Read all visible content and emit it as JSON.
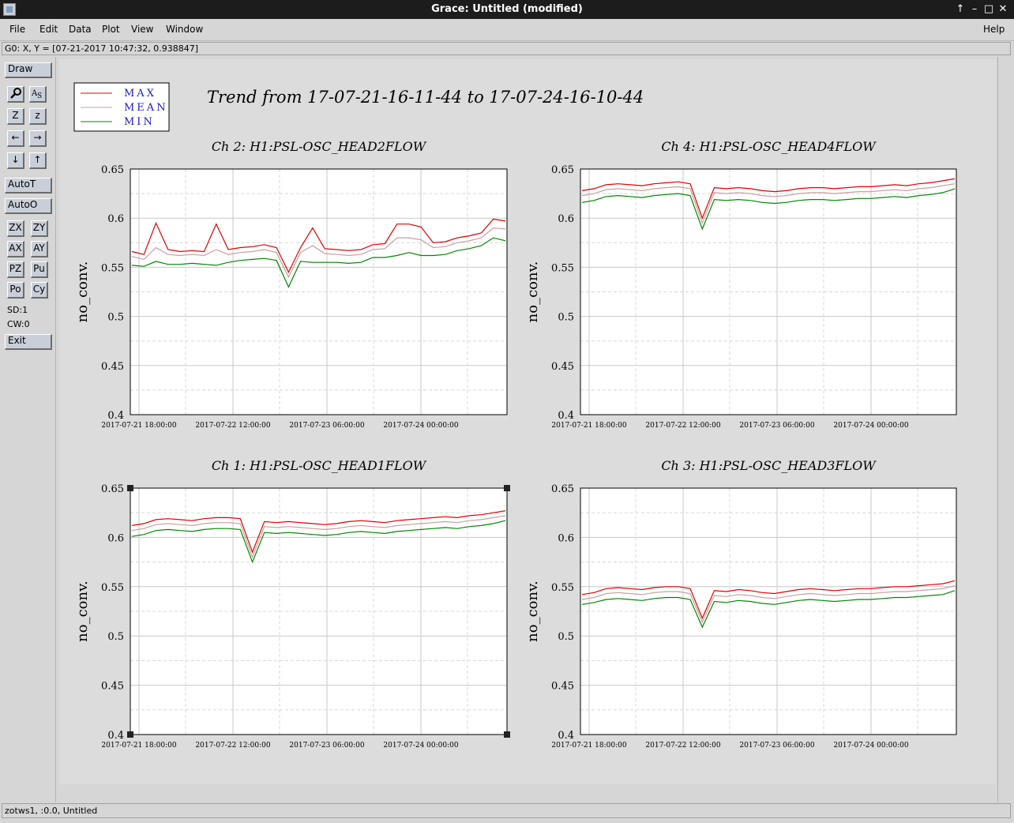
{
  "window": {
    "title": "Grace: Untitled (modified)"
  },
  "menu": {
    "file": "File",
    "edit": "Edit",
    "data": "Data",
    "plot": "Plot",
    "view": "View",
    "window": "Window",
    "help": "Help"
  },
  "locator": "G0: X, Y = [07-21-2017 10:47:32, 0.938847]",
  "toolbar": {
    "draw": "Draw",
    "autoT": "AutoT",
    "autoO": "AutoO",
    "zx": "ZX",
    "zy": "ZY",
    "ax": "AX",
    "ay": "AY",
    "pz": "PZ",
    "pu": "Pu",
    "po": "Po",
    "cy": "Cy",
    "sd": "SD:1",
    "cw": "CW:0",
    "exit": "Exit",
    "icon_zoom": "Z",
    "icon_zoom_small": "z"
  },
  "status": "zotws1, :0.0, Untitled",
  "legend": [
    "MAX",
    "MEAN",
    "MIN"
  ],
  "title": "Trend from 17-07-21-16-11-44 to 17-07-24-16-10-44",
  "colors": {
    "max": "#e00000",
    "mean": "#c8a0a0",
    "min": "#008800",
    "legend_text": "#1a1ad0"
  },
  "chart_data": [
    {
      "type": "line",
      "title": "Ch 2: H1:PSL-OSC_HEAD2FLOW",
      "ylabel": "no_conv.",
      "ylim": [
        0.4,
        0.65
      ],
      "yticks": [
        "0.4",
        "0.45",
        "0.5",
        "0.55",
        "0.6",
        "0.65"
      ],
      "xticks": [
        "2017-07-21 18:00:00",
        "2017-07-22 12:00:00",
        "2017-07-23 06:00:00",
        "2017-07-24 00:00:00"
      ],
      "grid": true,
      "series": [
        {
          "name": "MAX",
          "values": [
            0.566,
            0.563,
            0.595,
            0.568,
            0.566,
            0.567,
            0.566,
            0.594,
            0.568,
            0.57,
            0.571,
            0.573,
            0.57,
            0.545,
            0.57,
            0.59,
            0.569,
            0.568,
            0.567,
            0.568,
            0.573,
            0.574,
            0.594,
            0.594,
            0.591,
            0.575,
            0.576,
            0.58,
            0.582,
            0.585,
            0.599,
            0.597
          ]
        },
        {
          "name": "MEAN",
          "values": [
            0.561,
            0.558,
            0.57,
            0.563,
            0.562,
            0.563,
            0.562,
            0.568,
            0.563,
            0.565,
            0.566,
            0.568,
            0.565,
            0.54,
            0.565,
            0.572,
            0.564,
            0.563,
            0.562,
            0.563,
            0.568,
            0.569,
            0.58,
            0.58,
            0.578,
            0.57,
            0.571,
            0.575,
            0.577,
            0.58,
            0.59,
            0.589
          ]
        },
        {
          "name": "MIN",
          "values": [
            0.552,
            0.551,
            0.556,
            0.553,
            0.553,
            0.554,
            0.553,
            0.552,
            0.555,
            0.557,
            0.558,
            0.559,
            0.557,
            0.53,
            0.556,
            0.555,
            0.555,
            0.555,
            0.554,
            0.555,
            0.56,
            0.56,
            0.562,
            0.565,
            0.562,
            0.562,
            0.563,
            0.567,
            0.569,
            0.572,
            0.58,
            0.577
          ]
        }
      ]
    },
    {
      "type": "line",
      "title": "Ch 4: H1:PSL-OSC_HEAD4FLOW",
      "ylabel": "no_conv.",
      "ylim": [
        0.4,
        0.65
      ],
      "yticks": [
        "0.4",
        "0.45",
        "0.5",
        "0.55",
        "0.6",
        "0.65"
      ],
      "xticks": [
        "2017-07-21 18:00:00",
        "2017-07-22 12:00:00",
        "2017-07-23 06:00:00",
        "2017-07-24 00:00:00"
      ],
      "grid": true,
      "series": [
        {
          "name": "MAX",
          "values": [
            0.628,
            0.63,
            0.634,
            0.635,
            0.634,
            0.633,
            0.635,
            0.636,
            0.637,
            0.635,
            0.6,
            0.631,
            0.63,
            0.631,
            0.63,
            0.628,
            0.627,
            0.628,
            0.63,
            0.631,
            0.631,
            0.63,
            0.631,
            0.632,
            0.632,
            0.633,
            0.634,
            0.633,
            0.635,
            0.636,
            0.638,
            0.64
          ]
        },
        {
          "name": "MEAN",
          "values": [
            0.623,
            0.625,
            0.629,
            0.63,
            0.629,
            0.628,
            0.63,
            0.631,
            0.632,
            0.63,
            0.595,
            0.626,
            0.625,
            0.626,
            0.625,
            0.623,
            0.622,
            0.623,
            0.625,
            0.626,
            0.626,
            0.625,
            0.626,
            0.627,
            0.627,
            0.628,
            0.629,
            0.628,
            0.63,
            0.631,
            0.633,
            0.635
          ]
        },
        {
          "name": "MIN",
          "values": [
            0.616,
            0.618,
            0.622,
            0.623,
            0.622,
            0.621,
            0.623,
            0.624,
            0.625,
            0.623,
            0.589,
            0.619,
            0.618,
            0.619,
            0.618,
            0.616,
            0.615,
            0.616,
            0.618,
            0.619,
            0.619,
            0.618,
            0.619,
            0.62,
            0.62,
            0.621,
            0.622,
            0.621,
            0.623,
            0.624,
            0.626,
            0.63
          ]
        }
      ]
    },
    {
      "type": "line",
      "title": "Ch 1: H1:PSL-OSC_HEAD1FLOW",
      "ylabel": "no_conv.",
      "ylim": [
        0.4,
        0.65
      ],
      "yticks": [
        "0.4",
        "0.45",
        "0.5",
        "0.55",
        "0.6",
        "0.65"
      ],
      "xticks": [
        "2017-07-21 18:00:00",
        "2017-07-22 12:00:00",
        "2017-07-23 06:00:00",
        "2017-07-24 00:00:00"
      ],
      "grid": true,
      "series": [
        {
          "name": "MAX",
          "values": [
            0.612,
            0.614,
            0.618,
            0.619,
            0.618,
            0.617,
            0.619,
            0.62,
            0.62,
            0.619,
            0.585,
            0.616,
            0.615,
            0.616,
            0.615,
            0.614,
            0.613,
            0.614,
            0.616,
            0.617,
            0.616,
            0.615,
            0.617,
            0.618,
            0.619,
            0.62,
            0.621,
            0.62,
            0.622,
            0.623,
            0.625,
            0.627
          ]
        },
        {
          "name": "MEAN",
          "values": [
            0.607,
            0.609,
            0.613,
            0.614,
            0.613,
            0.612,
            0.614,
            0.615,
            0.615,
            0.614,
            0.58,
            0.611,
            0.61,
            0.611,
            0.61,
            0.609,
            0.608,
            0.609,
            0.611,
            0.612,
            0.611,
            0.61,
            0.612,
            0.613,
            0.614,
            0.615,
            0.616,
            0.615,
            0.617,
            0.618,
            0.62,
            0.622
          ]
        },
        {
          "name": "MIN",
          "values": [
            0.601,
            0.603,
            0.607,
            0.608,
            0.607,
            0.606,
            0.608,
            0.609,
            0.609,
            0.608,
            0.575,
            0.605,
            0.604,
            0.605,
            0.604,
            0.603,
            0.602,
            0.603,
            0.605,
            0.606,
            0.605,
            0.604,
            0.606,
            0.607,
            0.608,
            0.609,
            0.61,
            0.609,
            0.611,
            0.612,
            0.614,
            0.617
          ]
        }
      ]
    },
    {
      "type": "line",
      "title": "Ch 3: H1:PSL-OSC_HEAD3FLOW",
      "ylabel": "no_conv.",
      "ylim": [
        0.4,
        0.65
      ],
      "yticks": [
        "0.4",
        "0.45",
        "0.5",
        "0.55",
        "0.6",
        "0.65"
      ],
      "xticks": [
        "2017-07-21 18:00:00",
        "2017-07-22 12:00:00",
        "2017-07-23 06:00:00",
        "2017-07-24 00:00:00"
      ],
      "grid": true,
      "series": [
        {
          "name": "MAX",
          "values": [
            0.542,
            0.544,
            0.548,
            0.549,
            0.548,
            0.547,
            0.549,
            0.55,
            0.55,
            0.548,
            0.518,
            0.546,
            0.545,
            0.547,
            0.546,
            0.544,
            0.543,
            0.545,
            0.547,
            0.548,
            0.547,
            0.546,
            0.547,
            0.548,
            0.548,
            0.549,
            0.55,
            0.55,
            0.551,
            0.552,
            0.553,
            0.556
          ]
        },
        {
          "name": "MEAN",
          "values": [
            0.537,
            0.539,
            0.543,
            0.544,
            0.543,
            0.542,
            0.544,
            0.545,
            0.545,
            0.543,
            0.514,
            0.541,
            0.54,
            0.542,
            0.541,
            0.539,
            0.538,
            0.54,
            0.542,
            0.543,
            0.542,
            0.541,
            0.542,
            0.543,
            0.543,
            0.544,
            0.545,
            0.545,
            0.546,
            0.547,
            0.548,
            0.551
          ]
        },
        {
          "name": "MIN",
          "values": [
            0.532,
            0.534,
            0.537,
            0.538,
            0.537,
            0.536,
            0.538,
            0.539,
            0.539,
            0.537,
            0.509,
            0.535,
            0.534,
            0.536,
            0.535,
            0.533,
            0.532,
            0.534,
            0.536,
            0.537,
            0.536,
            0.535,
            0.536,
            0.537,
            0.537,
            0.538,
            0.539,
            0.539,
            0.54,
            0.541,
            0.542,
            0.546
          ]
        }
      ]
    }
  ]
}
